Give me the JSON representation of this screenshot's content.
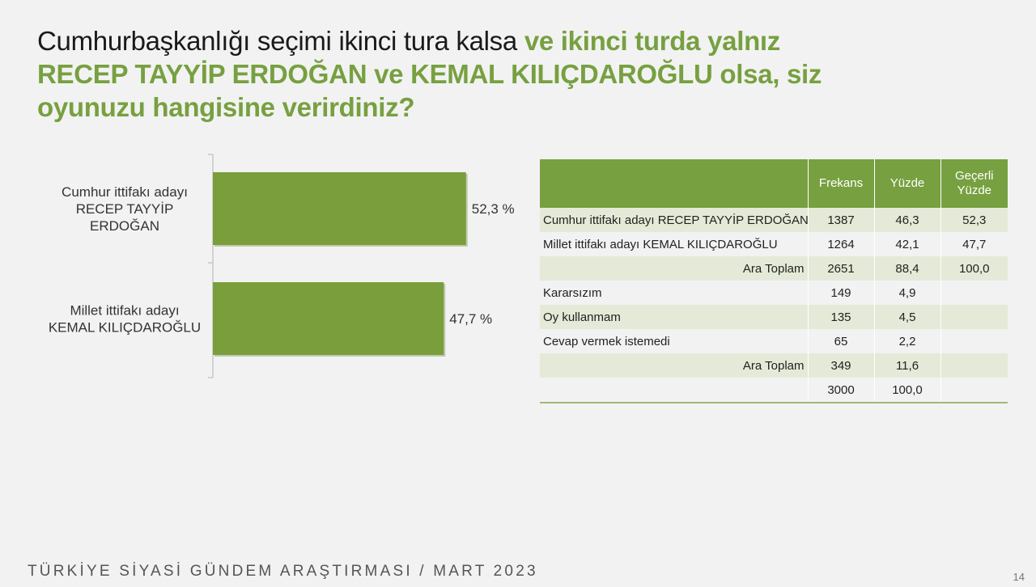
{
  "title": {
    "part1": "Cumhurbaşkanlığı seçimi ikinci tura kalsa ",
    "part2": "ve ikinci turda yalnız RECEP TAYYİP ERDOĞAN ve KEMAL KILIÇDAROĞLU olsa, siz oyunuzu hangisine verirdiniz?"
  },
  "colors": {
    "accent": "#77a040",
    "bar": "#7a9e3c",
    "row_alt": "#e4ead7"
  },
  "chart_data": {
    "type": "bar",
    "orientation": "horizontal",
    "categories": [
      [
        "Cumhur ittifakı adayı",
        "RECEP TAYYİP",
        "ERDOĞAN"
      ],
      [
        "Millet ittifakı adayı",
        "KEMAL KILIÇDAROĞLU"
      ]
    ],
    "values": [
      52.3,
      47.7
    ],
    "value_labels": [
      "52,3 %",
      "47,7 %"
    ],
    "xlim": [
      0,
      100
    ],
    "grid": false
  },
  "table": {
    "headers": [
      "",
      "Frekans",
      "Yüzde",
      "Geçerli Yüzde"
    ],
    "rows": [
      {
        "label": "Cumhur ittifakı adayı RECEP TAYYİP ERDOĞAN",
        "frekans": "1387",
        "yuzde": "46,3",
        "gecerli": "52,3",
        "align": "left",
        "alt": true
      },
      {
        "label": "Millet ittifakı adayı KEMAL KILIÇDAROĞLU",
        "frekans": "1264",
        "yuzde": "42,1",
        "gecerli": "47,7",
        "align": "left",
        "alt": false
      },
      {
        "label": "Ara Toplam",
        "frekans": "2651",
        "yuzde": "88,4",
        "gecerli": "100,0",
        "align": "right",
        "alt": true
      },
      {
        "label": "Kararsızım",
        "frekans": "149",
        "yuzde": "4,9",
        "gecerli": "",
        "align": "left",
        "alt": false
      },
      {
        "label": "Oy kullanmam",
        "frekans": "135",
        "yuzde": "4,5",
        "gecerli": "",
        "align": "left",
        "alt": true
      },
      {
        "label": "Cevap vermek istemedi",
        "frekans": "65",
        "yuzde": "2,2",
        "gecerli": "",
        "align": "left",
        "alt": false
      },
      {
        "label": "Ara Toplam",
        "frekans": "349",
        "yuzde": "11,6",
        "gecerli": "",
        "align": "right",
        "alt": true
      },
      {
        "label": "",
        "frekans": "3000",
        "yuzde": "100,0",
        "gecerli": "",
        "align": "left",
        "alt": false
      }
    ]
  },
  "footer": {
    "text": "TÜRKİYE SİYASİ GÜNDEM ARAŞTIRMASI  / MART 2023",
    "page": "14"
  }
}
